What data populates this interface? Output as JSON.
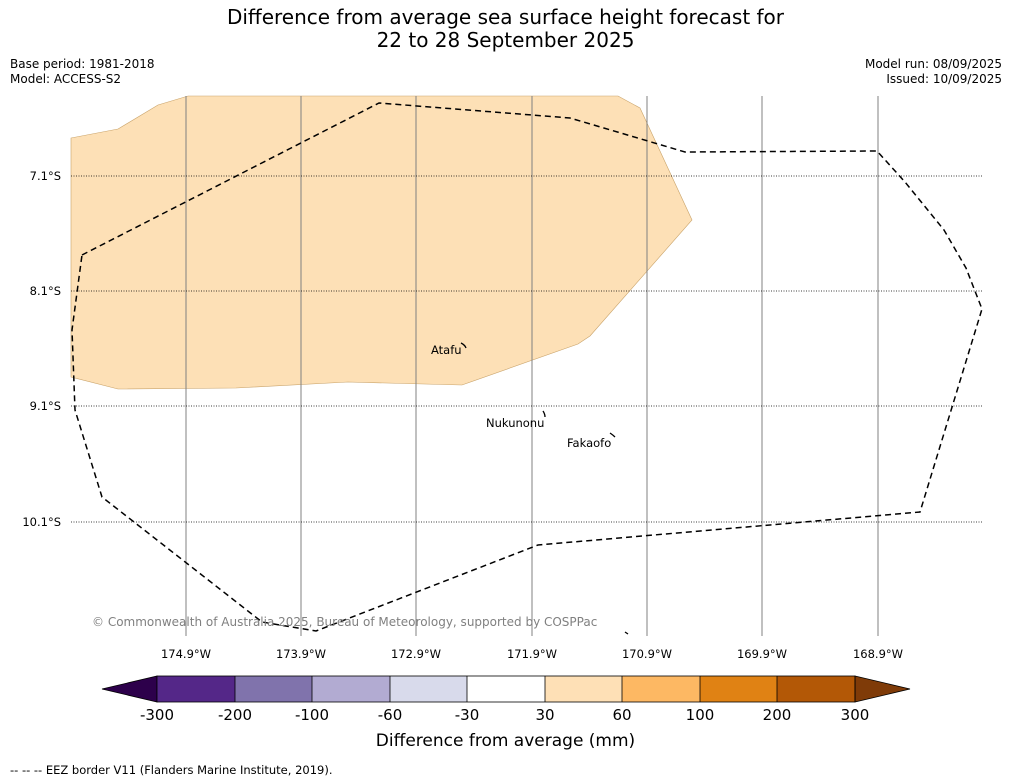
{
  "title_line1": "Difference from average sea surface height forecast for",
  "title_line2": "22 to 28 September 2025",
  "base_period": "Base period: 1981-2018",
  "model": "Model: ACCESS-S2",
  "model_run": "Model run: 08/09/2025",
  "issued": "Issued: 10/09/2025",
  "copyright": "© Commonwealth of Australia 2025, Bureau of Meteorology, supported by COSPPac",
  "map": {
    "lat_labels": [
      "7.1°S",
      "8.1°S",
      "9.1°S",
      "10.1°S"
    ],
    "lon_labels": [
      "174.9°W",
      "173.9°W",
      "172.9°W",
      "171.9°W",
      "170.9°W",
      "169.9°W",
      "168.9°W"
    ],
    "places": [
      "Atafu",
      "Nukunonu",
      "Fakaofo"
    ],
    "anomaly_band": "30 to 60",
    "anomaly_color": "#fde0b6"
  },
  "colorbar": {
    "title": "Difference from average (mm)",
    "ticks": [
      "-300",
      "-200",
      "-100",
      "-60",
      "-30",
      "30",
      "60",
      "100",
      "200",
      "300"
    ],
    "colors": [
      "#2d004b",
      "#542788",
      "#8073ac",
      "#b2abd2",
      "#d8daeb",
      "#ffffff",
      "#fee0b6",
      "#fdb863",
      "#e08214",
      "#b35806",
      "#7f3b08"
    ]
  },
  "footnote": "-- -- -- EEZ border V11 (Flanders Marine Institute, 2019)."
}
